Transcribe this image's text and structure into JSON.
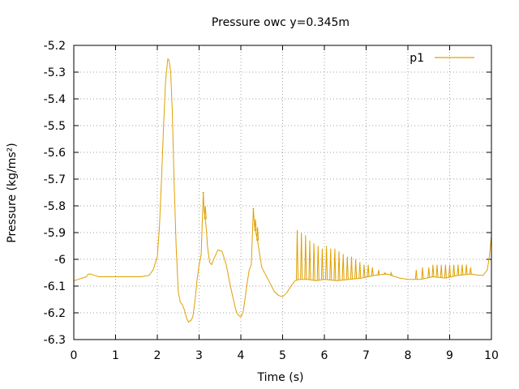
{
  "chart_data": {
    "type": "line",
    "title": "Pressure owc y=0.345m",
    "xlabel": "Time (s)",
    "ylabel": "Pressure (kg/ms²)",
    "xlim": [
      0,
      10
    ],
    "ylim": [
      -6.3,
      -5.2
    ],
    "x_ticks": [
      0,
      1,
      2,
      3,
      4,
      5,
      6,
      7,
      8,
      9,
      10
    ],
    "x_tick_labels": [
      "0",
      "1",
      "2",
      "3",
      "4",
      "5",
      "6",
      "7",
      "8",
      "9",
      "10"
    ],
    "y_ticks": [
      -6.3,
      -6.2,
      -6.1,
      -6.0,
      -5.9,
      -5.8,
      -5.7,
      -5.6,
      -5.5,
      -5.4,
      -5.3,
      -5.2
    ],
    "y_tick_labels": [
      "-6.3",
      "-6.2",
      "-6.1",
      "-6",
      "-5.9",
      "-5.8",
      "-5.7",
      "-5.6",
      "-5.5",
      "-5.4",
      "-5.3",
      "-5.2"
    ],
    "grid": true,
    "legend": {
      "position": "top-right"
    },
    "series": [
      {
        "name": "p1",
        "color": "#e0a000",
        "x": [
          0,
          0.1,
          0.2,
          0.3,
          0.35,
          0.4,
          0.5,
          0.6,
          0.8,
          1.0,
          1.2,
          1.4,
          1.6,
          1.8,
          1.9,
          2.0,
          2.05,
          2.1,
          2.15,
          2.2,
          2.25,
          2.28,
          2.32,
          2.36,
          2.4,
          2.45,
          2.5,
          2.55,
          2.6,
          2.65,
          2.7,
          2.75,
          2.78,
          2.8,
          2.85,
          2.9,
          2.95,
          3.0,
          3.05,
          3.1,
          3.12,
          3.15,
          3.18,
          3.2,
          3.25,
          3.3,
          3.35,
          3.45,
          3.55,
          3.65,
          3.75,
          3.85,
          3.9,
          3.95,
          4.0,
          4.05,
          4.1,
          4.15,
          4.2,
          4.25,
          4.3,
          4.33,
          4.36,
          4.4,
          4.45,
          4.5,
          4.6,
          4.7,
          4.8,
          4.9,
          5.0,
          5.1,
          5.2,
          5.3,
          5.4,
          5.6,
          5.8,
          6.0,
          6.3,
          6.6,
          6.9,
          7.2,
          7.5,
          7.8,
          8.0,
          8.3,
          8.6,
          8.9,
          9.2,
          9.5,
          9.7,
          9.8,
          9.9,
          9.95,
          10.0
        ],
        "y": [
          -6.08,
          -6.075,
          -6.07,
          -6.065,
          -6.055,
          -6.055,
          -6.06,
          -6.065,
          -6.065,
          -6.065,
          -6.065,
          -6.065,
          -6.065,
          -6.06,
          -6.04,
          -5.99,
          -5.88,
          -5.7,
          -5.5,
          -5.33,
          -5.25,
          -5.255,
          -5.3,
          -5.45,
          -5.7,
          -5.95,
          -6.12,
          -6.16,
          -6.17,
          -6.19,
          -6.22,
          -6.235,
          -6.23,
          -6.23,
          -6.215,
          -6.16,
          -6.08,
          -6.02,
          -5.98,
          -5.75,
          -5.82,
          -5.85,
          -5.9,
          -5.95,
          -6.01,
          -6.02,
          -6.0,
          -5.965,
          -5.97,
          -6.02,
          -6.1,
          -6.17,
          -6.2,
          -6.21,
          -6.215,
          -6.2,
          -6.15,
          -6.09,
          -6.04,
          -6.02,
          -5.81,
          -5.88,
          -5.9,
          -5.93,
          -5.98,
          -6.03,
          -6.06,
          -6.09,
          -6.12,
          -6.135,
          -6.14,
          -6.125,
          -6.1,
          -6.08,
          -6.075,
          -6.075,
          -6.08,
          -6.075,
          -6.08,
          -6.075,
          -6.07,
          -6.06,
          -6.055,
          -6.07,
          -6.075,
          -6.075,
          -6.065,
          -6.07,
          -6.06,
          -6.055,
          -6.06,
          -6.06,
          -6.04,
          -5.99,
          -5.91
        ]
      }
    ],
    "spikes": [
      {
        "x": 5.35,
        "y": -5.89
      },
      {
        "x": 5.45,
        "y": -5.9
      },
      {
        "x": 5.55,
        "y": -5.91
      },
      {
        "x": 5.65,
        "y": -5.93
      },
      {
        "x": 5.75,
        "y": -5.94
      },
      {
        "x": 5.85,
        "y": -5.95
      },
      {
        "x": 5.95,
        "y": -5.96
      },
      {
        "x": 6.05,
        "y": -5.95
      },
      {
        "x": 6.15,
        "y": -5.96
      },
      {
        "x": 6.25,
        "y": -5.96
      },
      {
        "x": 6.35,
        "y": -5.97
      },
      {
        "x": 6.45,
        "y": -5.98
      },
      {
        "x": 6.55,
        "y": -5.99
      },
      {
        "x": 6.65,
        "y": -5.99
      },
      {
        "x": 6.75,
        "y": -6.0
      },
      {
        "x": 6.85,
        "y": -6.01
      },
      {
        "x": 6.95,
        "y": -6.02
      },
      {
        "x": 7.05,
        "y": -6.02
      },
      {
        "x": 7.15,
        "y": -6.03
      },
      {
        "x": 7.3,
        "y": -6.04
      },
      {
        "x": 7.45,
        "y": -6.05
      },
      {
        "x": 7.6,
        "y": -6.05
      },
      {
        "x": 8.2,
        "y": -6.04
      },
      {
        "x": 8.35,
        "y": -6.03
      },
      {
        "x": 8.5,
        "y": -6.03
      },
      {
        "x": 8.6,
        "y": -6.02
      },
      {
        "x": 8.7,
        "y": -6.02
      },
      {
        "x": 8.8,
        "y": -6.02
      },
      {
        "x": 8.9,
        "y": -6.02
      },
      {
        "x": 9.0,
        "y": -6.02
      },
      {
        "x": 9.1,
        "y": -6.02
      },
      {
        "x": 9.2,
        "y": -6.02
      },
      {
        "x": 9.3,
        "y": -6.02
      },
      {
        "x": 9.4,
        "y": -6.02
      },
      {
        "x": 9.5,
        "y": -6.03
      },
      {
        "x": 3.1,
        "y": -5.75
      },
      {
        "x": 3.15,
        "y": -5.8
      },
      {
        "x": 4.3,
        "y": -5.81
      },
      {
        "x": 4.35,
        "y": -5.85
      },
      {
        "x": 4.4,
        "y": -5.88
      }
    ]
  }
}
